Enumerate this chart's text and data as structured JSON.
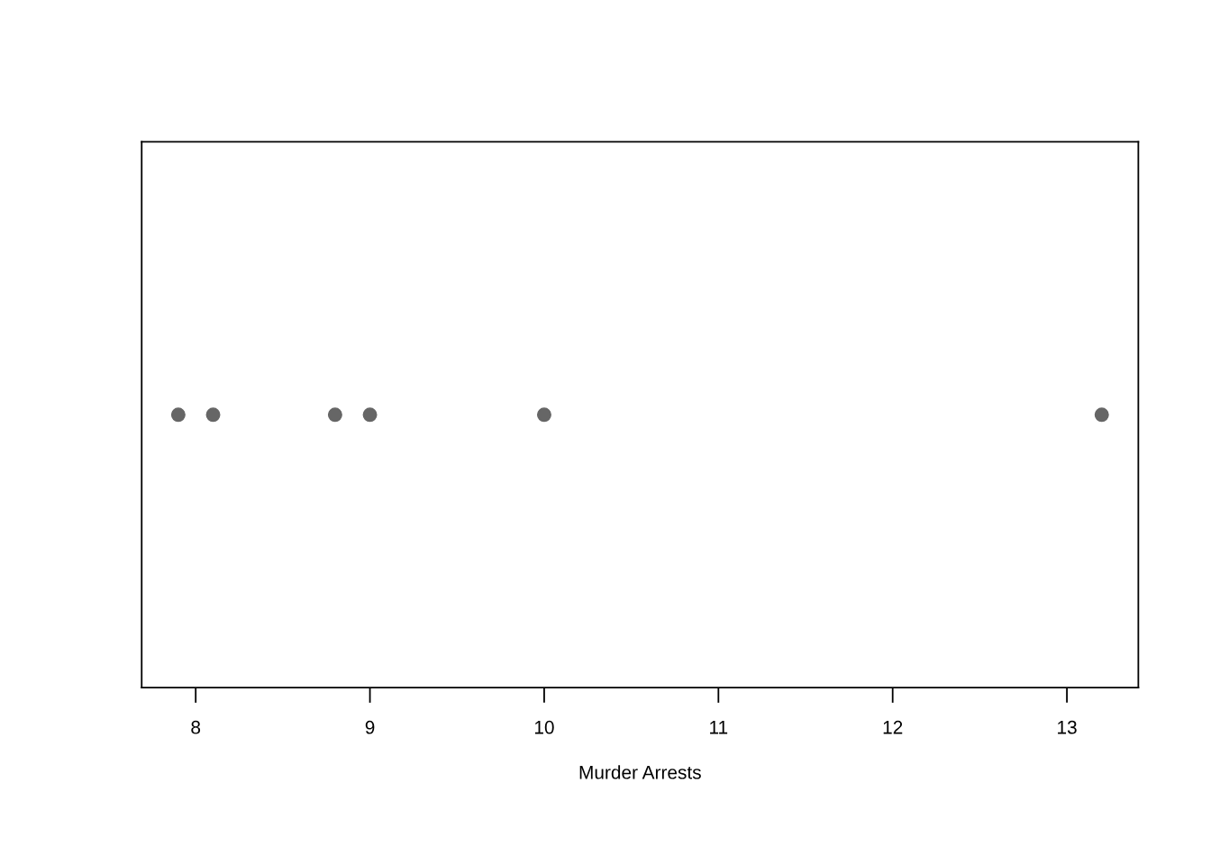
{
  "chart_data": {
    "type": "scatter",
    "orientation": "horizontal",
    "xlabel": "Murder Arrests",
    "categories": [
      null
    ],
    "series": [
      {
        "color": "#666666",
        "values": [
          7.9
        ]
      },
      {
        "color": "#666666",
        "values": [
          8.1
        ]
      },
      {
        "color": "#666666",
        "values": [
          8.8
        ]
      },
      {
        "color": "#666666",
        "values": [
          9.0
        ]
      },
      {
        "color": "#666666",
        "values": [
          10.0
        ]
      },
      {
        "color": "#666666",
        "values": [
          13.2
        ]
      }
    ],
    "marker": "circle",
    "xlim": [
      7.69,
      13.41
    ],
    "xticks": [
      8,
      9,
      10,
      11,
      12,
      13
    ],
    "tick_labels": "x"
  }
}
